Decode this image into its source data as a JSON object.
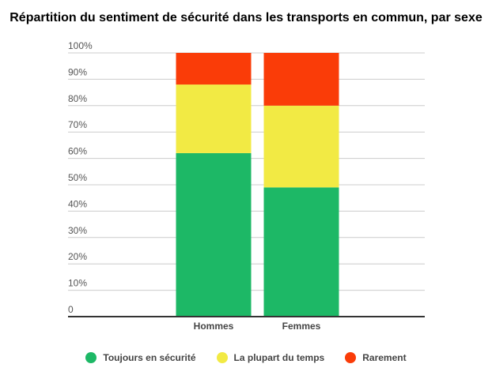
{
  "chart_data": {
    "type": "bar",
    "stacked": true,
    "title": "Répartition du sentiment de sécurité dans les transports en commun, par sexe",
    "categories": [
      "Hommes",
      "Femmes"
    ],
    "series": [
      {
        "name": "Toujours en sécurité",
        "color": "#1db866",
        "values": [
          62,
          49
        ]
      },
      {
        "name": "La plupart du temps",
        "color": "#f2ea44",
        "values": [
          26,
          31
        ]
      },
      {
        "name": "Rarement",
        "color": "#fa3c08",
        "values": [
          12,
          20
        ]
      }
    ],
    "y_ticks": [
      "0",
      "10%",
      "20%",
      "30%",
      "40%",
      "50%",
      "60%",
      "70%",
      "80%",
      "90%",
      "100%"
    ],
    "ylim": [
      0,
      100
    ],
    "xlabel": "",
    "ylabel": "",
    "grid": true,
    "legend_position": "bottom"
  }
}
